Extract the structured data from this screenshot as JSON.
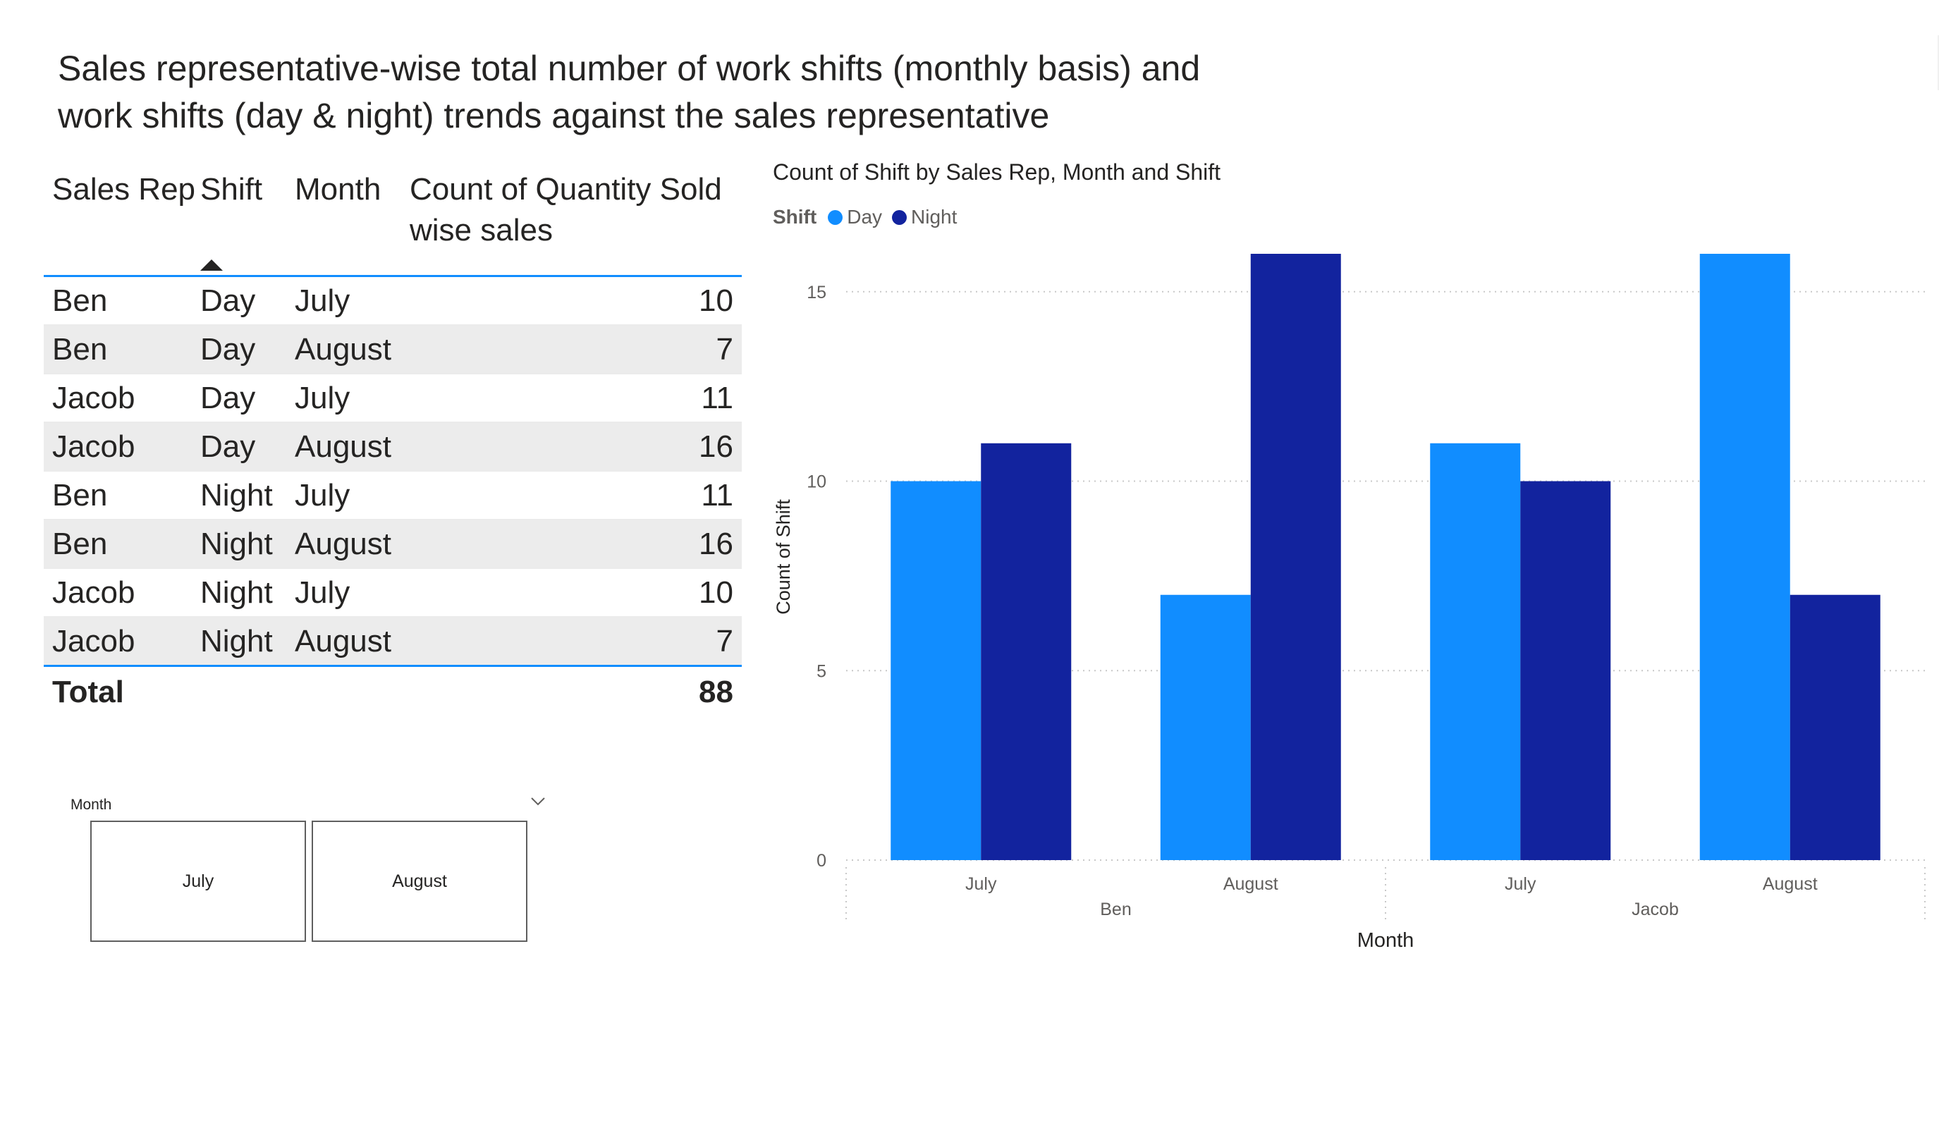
{
  "page": {
    "title_line1": "Sales representative-wise total number of work shifts (monthly basis) and",
    "title_line2": "work shifts (day & night) trends against the sales representative"
  },
  "table": {
    "headers": {
      "sales_rep": "Sales Rep",
      "shift": "Shift",
      "month": "Month",
      "count_line1": "Count of Quantity Sold",
      "count_line2": "wise sales"
    },
    "sorted_column": "shift",
    "rows": [
      {
        "rep": "Ben",
        "shift": "Day",
        "month": "July",
        "count": "10"
      },
      {
        "rep": "Ben",
        "shift": "Day",
        "month": "August",
        "count": "7"
      },
      {
        "rep": "Jacob",
        "shift": "Day",
        "month": "July",
        "count": "11"
      },
      {
        "rep": "Jacob",
        "shift": "Day",
        "month": "August",
        "count": "16"
      },
      {
        "rep": "Ben",
        "shift": "Night",
        "month": "July",
        "count": "11"
      },
      {
        "rep": "Ben",
        "shift": "Night",
        "month": "August",
        "count": "16"
      },
      {
        "rep": "Jacob",
        "shift": "Night",
        "month": "July",
        "count": "10"
      },
      {
        "rep": "Jacob",
        "shift": "Night",
        "month": "August",
        "count": "7"
      }
    ],
    "total": {
      "label": "Total",
      "value": "88"
    }
  },
  "slicer": {
    "title": "Month",
    "options": [
      "July",
      "August"
    ],
    "chevron_icon": "chevron-down-icon"
  },
  "chart_data": {
    "type": "bar",
    "title": "Count of Shift by Sales Rep, Month and Shift",
    "legend_title": "Shift",
    "legend_position": "top-left",
    "xlabel": "Month",
    "ylabel": "Count of Shift",
    "groups": [
      {
        "name": "Ben",
        "categories": [
          "July",
          "August"
        ]
      },
      {
        "name": "Jacob",
        "categories": [
          "July",
          "August"
        ]
      }
    ],
    "categories": [
      "July",
      "August",
      "July",
      "August"
    ],
    "series": [
      {
        "name": "Day",
        "color": "#118dff",
        "values": [
          10,
          7,
          11,
          16
        ]
      },
      {
        "name": "Night",
        "color": "#12239e",
        "values": [
          11,
          16,
          10,
          7
        ]
      }
    ],
    "ylim": [
      0,
      16
    ],
    "yticks": [
      0,
      5,
      10,
      15
    ],
    "grid": true
  }
}
